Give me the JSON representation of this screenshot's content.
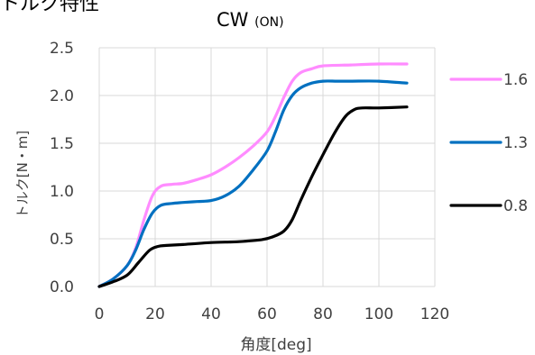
{
  "chart_data": {
    "type": "line",
    "header_cut": "トルク特性",
    "title": "CW",
    "title_suffix": "(ON)",
    "xlabel": "角度[deg]",
    "ylabel": "トルク[N・m]",
    "xlim": [
      0,
      120
    ],
    "ylim": [
      0,
      2.5
    ],
    "xticks": [
      "0",
      "20",
      "40",
      "60",
      "80",
      "100",
      "120"
    ],
    "yticks": [
      "0.0",
      "0.5",
      "1.0",
      "1.5",
      "2.0",
      "2.5"
    ],
    "grid": true,
    "legend": "right",
    "series": [
      {
        "name": "1.6",
        "color": "#ff8cff",
        "x": [
          0,
          5,
          10,
          13,
          16,
          19,
          22,
          26,
          30,
          35,
          40,
          45,
          50,
          55,
          60,
          63,
          66,
          69,
          72,
          76,
          80,
          90,
          100,
          110
        ],
        "y": [
          0.0,
          0.08,
          0.22,
          0.4,
          0.7,
          0.95,
          1.05,
          1.07,
          1.08,
          1.12,
          1.17,
          1.25,
          1.35,
          1.47,
          1.62,
          1.78,
          1.98,
          2.15,
          2.24,
          2.28,
          2.31,
          2.32,
          2.33,
          2.33
        ]
      },
      {
        "name": "1.3",
        "color": "#0070c0",
        "x": [
          0,
          5,
          10,
          13,
          16,
          19,
          22,
          26,
          30,
          35,
          40,
          45,
          50,
          55,
          60,
          63,
          66,
          69,
          72,
          76,
          80,
          85,
          90,
          100,
          110
        ],
        "y": [
          0.0,
          0.08,
          0.22,
          0.38,
          0.6,
          0.77,
          0.85,
          0.87,
          0.88,
          0.89,
          0.9,
          0.95,
          1.05,
          1.22,
          1.42,
          1.62,
          1.85,
          2.0,
          2.08,
          2.13,
          2.15,
          2.15,
          2.15,
          2.15,
          2.13
        ]
      },
      {
        "name": "0.8",
        "color": "#000000",
        "x": [
          0,
          5,
          10,
          14,
          18,
          21,
          24,
          30,
          40,
          50,
          58,
          62,
          66,
          69,
          72,
          76,
          80,
          84,
          88,
          91,
          94,
          100,
          110
        ],
        "y": [
          0.0,
          0.05,
          0.12,
          0.25,
          0.38,
          0.42,
          0.43,
          0.44,
          0.46,
          0.47,
          0.49,
          0.52,
          0.58,
          0.7,
          0.9,
          1.15,
          1.38,
          1.6,
          1.78,
          1.85,
          1.87,
          1.87,
          1.88
        ]
      }
    ]
  }
}
